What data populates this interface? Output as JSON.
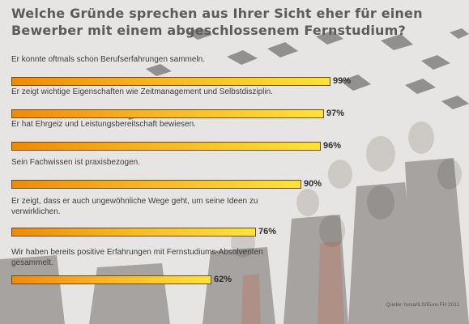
{
  "title_lines": [
    "Welche Gründe sprechen aus Ihrer Sicht eher für einen",
    "Bewerber mit einem abgeschlossenem Fernstudium?"
  ],
  "source": "Quelle: forsa/ILS/Euro-FH 2011",
  "chart_data": {
    "type": "bar",
    "orientation": "horizontal",
    "unit": "%",
    "xlim": [
      0,
      100
    ],
    "categories": [
      "Er konnte oftmals schon Berufserfahrungen sammeln.",
      "Er zeigt wichtige Eigenschaften wie Zeitmanagement und Selbstdisziplin.",
      "Er hat Ehrgeiz und Leistungsbereitschaft bewiesen.",
      "Sein Fachwissen ist praxisbezogen.",
      "Er zeigt, dass er auch ungewöhnliche Wege geht, um seine Ideen zu verwirklichen.",
      "Wir haben bereits positive Erfahrungen mit Fernstudiums-Absolventen gesammelt."
    ],
    "values": [
      99,
      97,
      96,
      90,
      76,
      62
    ],
    "value_labels": [
      "99%",
      "97%",
      "96%",
      "90%",
      "76%",
      "62%"
    ],
    "bar_colors": [
      "#ef8a09",
      "#fde33a"
    ]
  }
}
